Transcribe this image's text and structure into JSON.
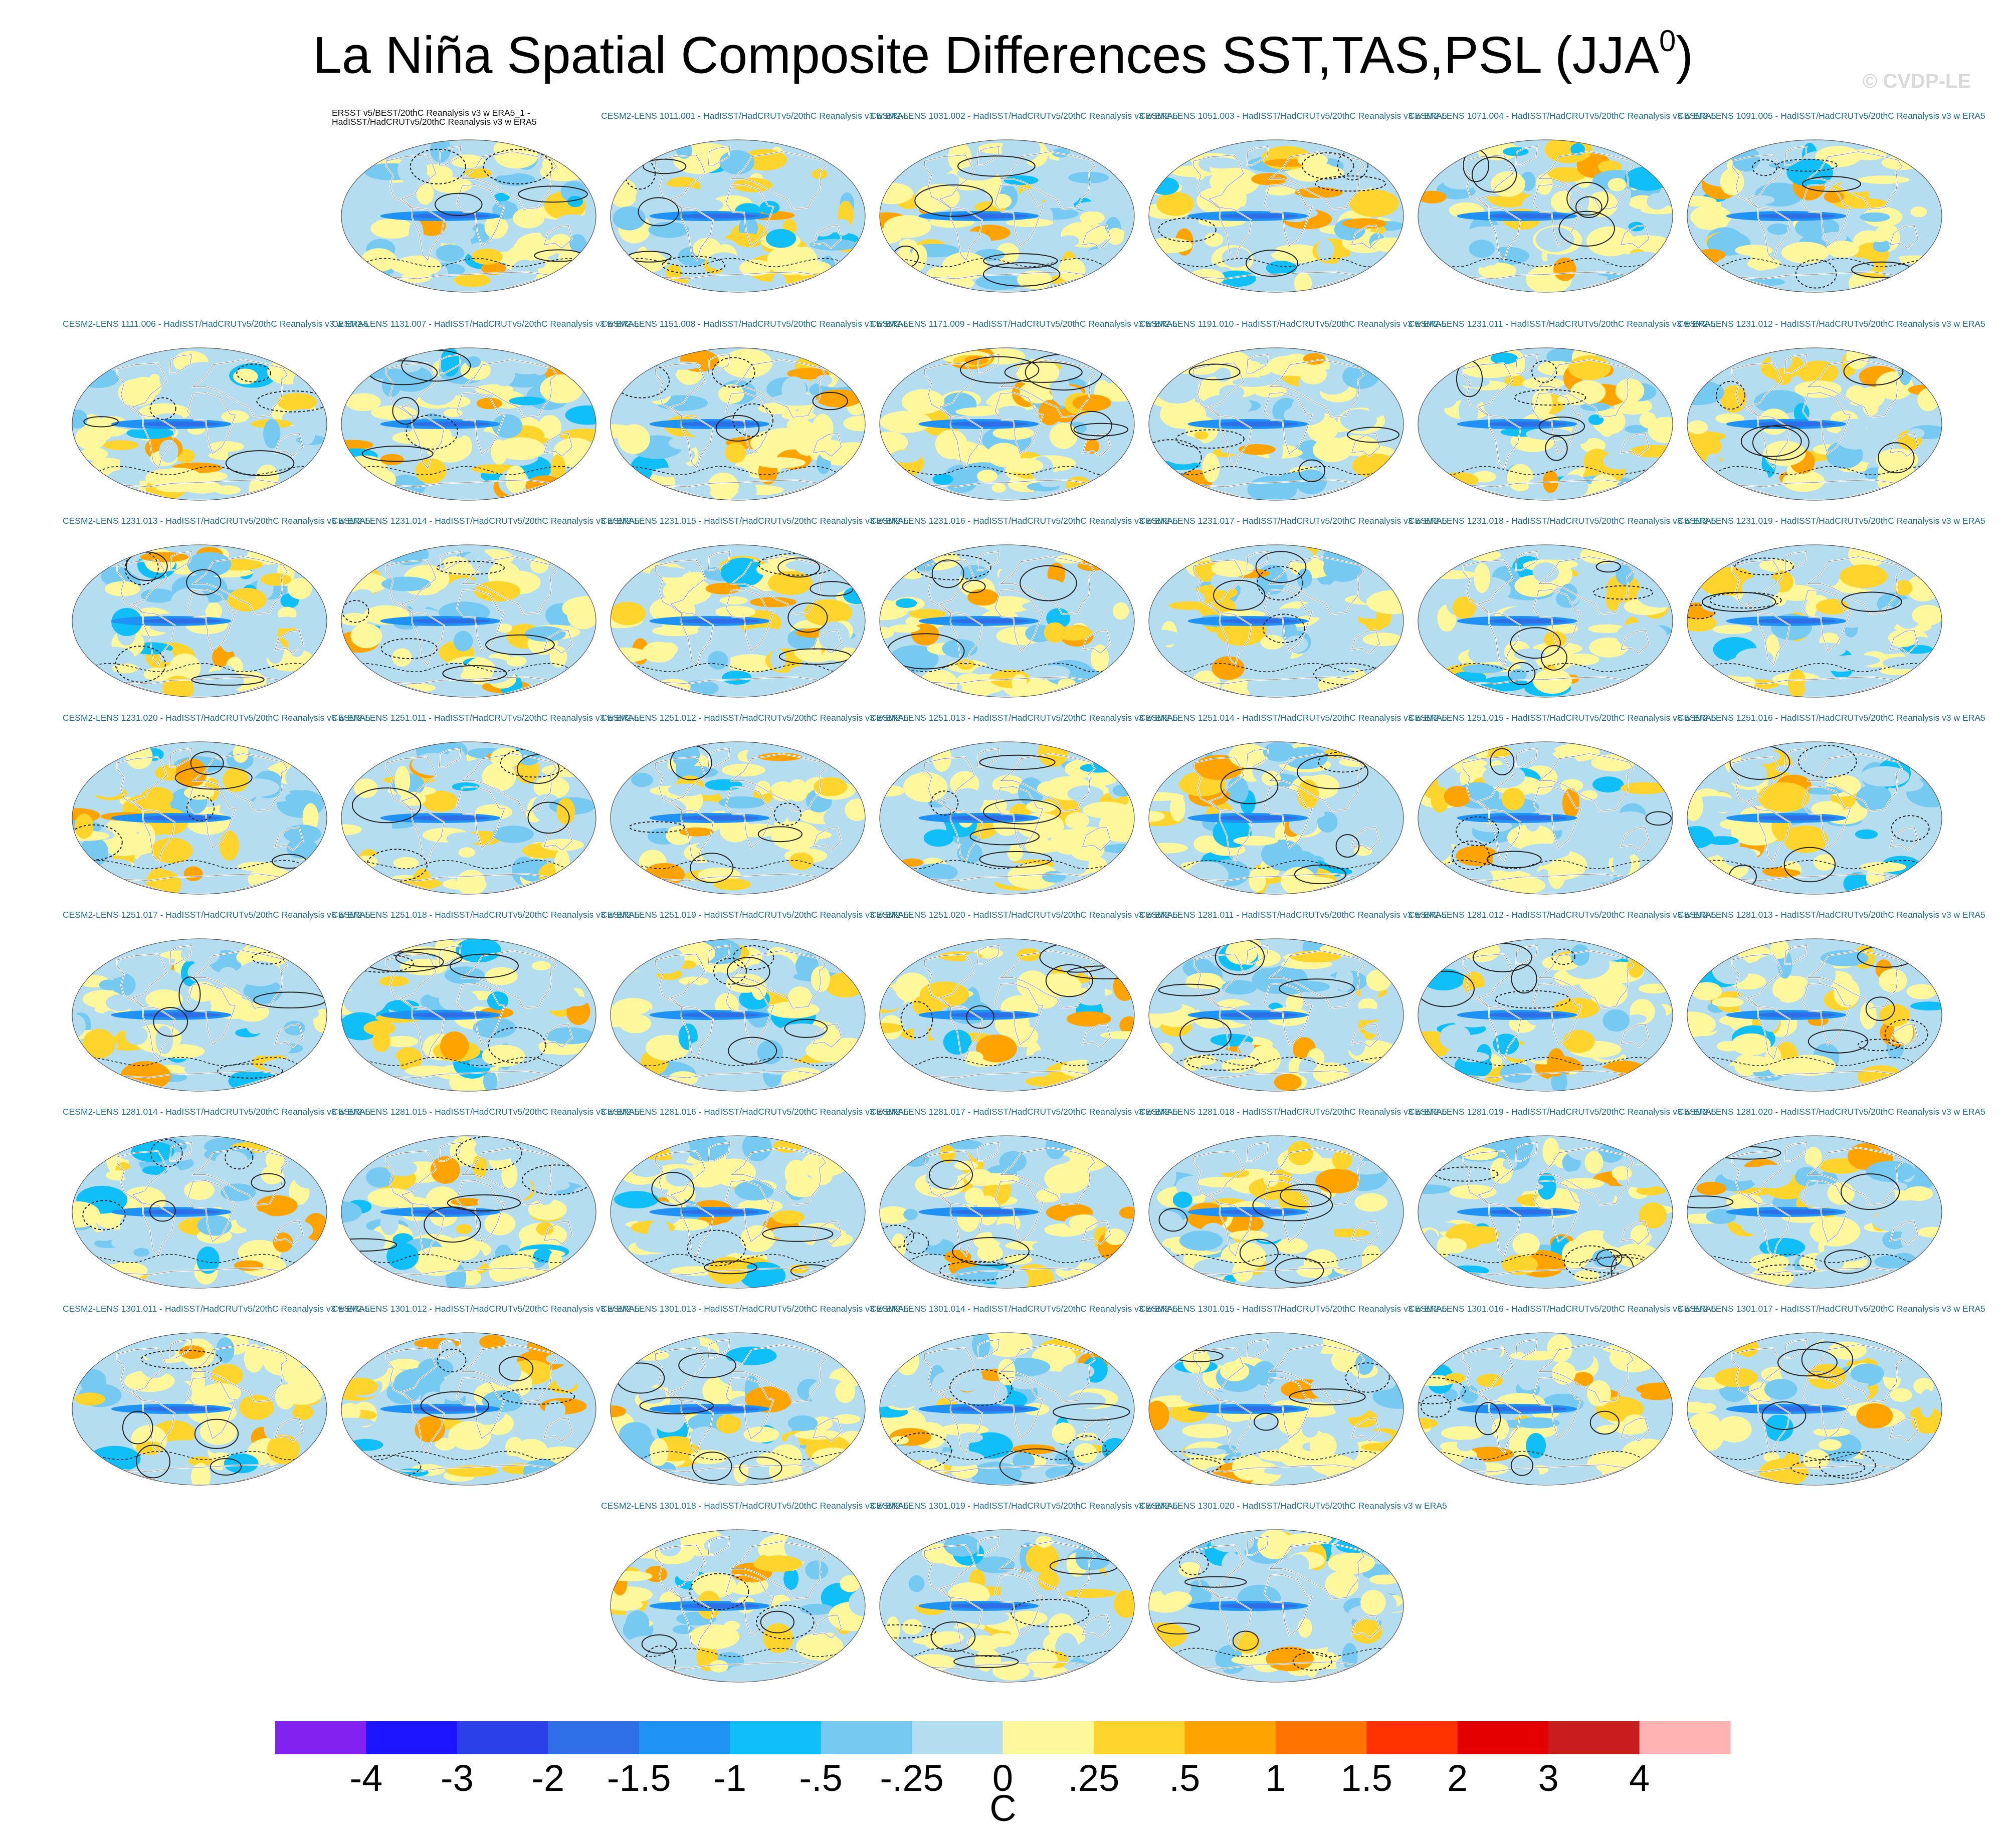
{
  "title": {
    "main": "La Niña Spatial Composite Differences SST,TAS,PSL (JJA",
    "superscript": "0",
    "close": ")"
  },
  "watermark": "© CVDP-LE",
  "colors": {
    "land_outline": "#ffffff",
    "coast": "#777777",
    "contour": "#222222",
    "label_text": "#1f6e8e"
  },
  "chart_data": {
    "type": "heatmap",
    "projection": "robinson",
    "variables": [
      "SST",
      "TAS",
      "PSL"
    ],
    "season": "JJA0",
    "colorbar": {
      "unit": "C",
      "levels": [
        "-4",
        "-3",
        "-2",
        "-1.5",
        "-1",
        "-.5",
        "-.25",
        "0",
        ".25",
        ".5",
        "1",
        "1.5",
        "2",
        "3",
        "4"
      ],
      "colors": [
        "#8122f0",
        "#1d15ff",
        "#2b40e8",
        "#2e6ee6",
        "#1f93f5",
        "#10bef8",
        "#76c9f0",
        "#b5ddf0",
        "#fff79c",
        "#ffd52d",
        "#ffa300",
        "#ff7400",
        "#ff3300",
        "#e50000",
        "#c81d1f",
        "#ffb3b3"
      ]
    },
    "panels": [
      {
        "label": "ERSST v5/BEST/20thC Reanalysis v3 w ERA5_1 - HadISST/HadCRUTv5/20thC Reanalysis v3 w ERA5",
        "seed": 1
      },
      {
        "label": "CESM2-LENS 1011.001 - HadISST/HadCRUTv5/20thC Reanalysis v3 w ERA5",
        "seed": 2
      },
      {
        "label": "CESM2-LENS 1031.002 - HadISST/HadCRUTv5/20thC Reanalysis v3 w ERA5",
        "seed": 3
      },
      {
        "label": "CESM2-LENS 1051.003 - HadISST/HadCRUTv5/20thC Reanalysis v3 w ERA5",
        "seed": 4
      },
      {
        "label": "CESM2-LENS 1071.004 - HadISST/HadCRUTv5/20thC Reanalysis v3 w ERA5",
        "seed": 5
      },
      {
        "label": "CESM2-LENS 1091.005 - HadISST/HadCRUTv5/20thC Reanalysis v3 w ERA5",
        "seed": 6
      },
      {
        "label": "CESM2-LENS 1111.006 - HadISST/HadCRUTv5/20thC Reanalysis v3 w ERA5",
        "seed": 7
      },
      {
        "label": "CESM2-LENS 1131.007 - HadISST/HadCRUTv5/20thC Reanalysis v3 w ERA5",
        "seed": 8
      },
      {
        "label": "CESM2-LENS 1151.008 - HadISST/HadCRUTv5/20thC Reanalysis v3 w ERA5",
        "seed": 9
      },
      {
        "label": "CESM2-LENS 1171.009 - HadISST/HadCRUTv5/20thC Reanalysis v3 w ERA5",
        "seed": 10
      },
      {
        "label": "CESM2-LENS 1191.010 - HadISST/HadCRUTv5/20thC Reanalysis v3 w ERA5",
        "seed": 11
      },
      {
        "label": "CESM2-LENS 1231.011 - HadISST/HadCRUTv5/20thC Reanalysis v3 w ERA5",
        "seed": 12
      },
      {
        "label": "CESM2-LENS 1231.012 - HadISST/HadCRUTv5/20thC Reanalysis v3 w ERA5",
        "seed": 13
      },
      {
        "label": "CESM2-LENS 1231.013 - HadISST/HadCRUTv5/20thC Reanalysis v3 w ERA5",
        "seed": 14
      },
      {
        "label": "CESM2-LENS 1231.014 - HadISST/HadCRUTv5/20thC Reanalysis v3 w ERA5",
        "seed": 15
      },
      {
        "label": "CESM2-LENS 1231.015 - HadISST/HadCRUTv5/20thC Reanalysis v3 w ERA5",
        "seed": 16
      },
      {
        "label": "CESM2-LENS 1231.016 - HadISST/HadCRUTv5/20thC Reanalysis v3 w ERA5",
        "seed": 17
      },
      {
        "label": "CESM2-LENS 1231.017 - HadISST/HadCRUTv5/20thC Reanalysis v3 w ERA5",
        "seed": 18
      },
      {
        "label": "CESM2-LENS 1231.018 - HadISST/HadCRUTv5/20thC Reanalysis v3 w ERA5",
        "seed": 19
      },
      {
        "label": "CESM2-LENS 1231.019 - HadISST/HadCRUTv5/20thC Reanalysis v3 w ERA5",
        "seed": 20
      },
      {
        "label": "CESM2-LENS 1231.020 - HadISST/HadCRUTv5/20thC Reanalysis v3 w ERA5",
        "seed": 21
      },
      {
        "label": "CESM2-LENS 1251.011 - HadISST/HadCRUTv5/20thC Reanalysis v3 w ERA5",
        "seed": 22
      },
      {
        "label": "CESM2-LENS 1251.012 - HadISST/HadCRUTv5/20thC Reanalysis v3 w ERA5",
        "seed": 23
      },
      {
        "label": "CESM2-LENS 1251.013 - HadISST/HadCRUTv5/20thC Reanalysis v3 w ERA5",
        "seed": 24
      },
      {
        "label": "CESM2-LENS 1251.014 - HadISST/HadCRUTv5/20thC Reanalysis v3 w ERA5",
        "seed": 25
      },
      {
        "label": "CESM2-LENS 1251.015 - HadISST/HadCRUTv5/20thC Reanalysis v3 w ERA5",
        "seed": 26
      },
      {
        "label": "CESM2-LENS 1251.016 - HadISST/HadCRUTv5/20thC Reanalysis v3 w ERA5",
        "seed": 27
      },
      {
        "label": "CESM2-LENS 1251.017 - HadISST/HadCRUTv5/20thC Reanalysis v3 w ERA5",
        "seed": 28
      },
      {
        "label": "CESM2-LENS 1251.018 - HadISST/HadCRUTv5/20thC Reanalysis v3 w ERA5",
        "seed": 29
      },
      {
        "label": "CESM2-LENS 1251.019 - HadISST/HadCRUTv5/20thC Reanalysis v3 w ERA5",
        "seed": 30
      },
      {
        "label": "CESM2-LENS 1251.020 - HadISST/HadCRUTv5/20thC Reanalysis v3 w ERA5",
        "seed": 31
      },
      {
        "label": "CESM2-LENS 1281.011 - HadISST/HadCRUTv5/20thC Reanalysis v3 w ERA5",
        "seed": 32
      },
      {
        "label": "CESM2-LENS 1281.012 - HadISST/HadCRUTv5/20thC Reanalysis v3 w ERA5",
        "seed": 33
      },
      {
        "label": "CESM2-LENS 1281.013 - HadISST/HadCRUTv5/20thC Reanalysis v3 w ERA5",
        "seed": 34
      },
      {
        "label": "CESM2-LENS 1281.014 - HadISST/HadCRUTv5/20thC Reanalysis v3 w ERA5",
        "seed": 35
      },
      {
        "label": "CESM2-LENS 1281.015 - HadISST/HadCRUTv5/20thC Reanalysis v3 w ERA5",
        "seed": 36
      },
      {
        "label": "CESM2-LENS 1281.016 - HadISST/HadCRUTv5/20thC Reanalysis v3 w ERA5",
        "seed": 37
      },
      {
        "label": "CESM2-LENS 1281.017 - HadISST/HadCRUTv5/20thC Reanalysis v3 w ERA5",
        "seed": 38
      },
      {
        "label": "CESM2-LENS 1281.018 - HadISST/HadCRUTv5/20thC Reanalysis v3 w ERA5",
        "seed": 39
      },
      {
        "label": "CESM2-LENS 1281.019 - HadISST/HadCRUTv5/20thC Reanalysis v3 w ERA5",
        "seed": 40
      },
      {
        "label": "CESM2-LENS 1281.020 - HadISST/HadCRUTv5/20thC Reanalysis v3 w ERA5",
        "seed": 41
      },
      {
        "label": "CESM2-LENS 1301.011 - HadISST/HadCRUTv5/20thC Reanalysis v3 w ERA5",
        "seed": 42
      },
      {
        "label": "CESM2-LENS 1301.012 - HadISST/HadCRUTv5/20thC Reanalysis v3 w ERA5",
        "seed": 43
      },
      {
        "label": "CESM2-LENS 1301.013 - HadISST/HadCRUTv5/20thC Reanalysis v3 w ERA5",
        "seed": 44
      },
      {
        "label": "CESM2-LENS 1301.014 - HadISST/HadCRUTv5/20thC Reanalysis v3 w ERA5",
        "seed": 45
      },
      {
        "label": "CESM2-LENS 1301.015 - HadISST/HadCRUTv5/20thC Reanalysis v3 w ERA5",
        "seed": 46
      },
      {
        "label": "CESM2-LENS 1301.016 - HadISST/HadCRUTv5/20thC Reanalysis v3 w ERA5",
        "seed": 47
      },
      {
        "label": "CESM2-LENS 1301.017 - HadISST/HadCRUTv5/20thC Reanalysis v3 w ERA5",
        "seed": 48
      },
      {
        "label": "CESM2-LENS 1301.018 - HadISST/HadCRUTv5/20thC Reanalysis v3 w ERA5",
        "seed": 49
      },
      {
        "label": "CESM2-LENS 1301.019 - HadISST/HadCRUTv5/20thC Reanalysis v3 w ERA5",
        "seed": 50
      },
      {
        "label": "CESM2-LENS 1301.020 - HadISST/HadCRUTv5/20thC Reanalysis v3 w ERA5",
        "seed": 51
      }
    ]
  }
}
